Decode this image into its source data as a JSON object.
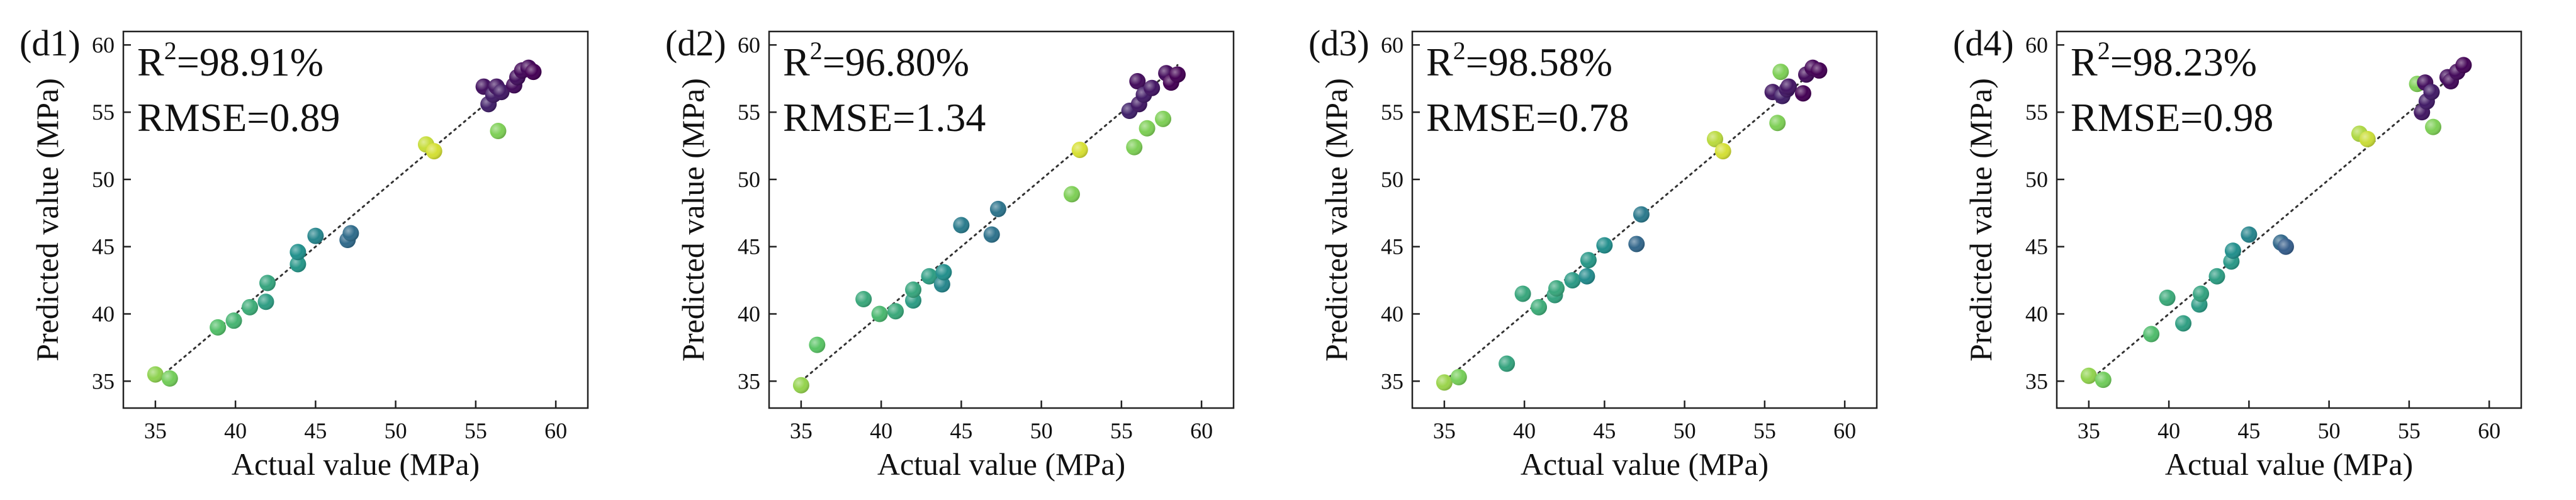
{
  "chart_data": [
    {
      "type": "scatter",
      "panel_label": "(d1)",
      "r2_label": "R",
      "r2_sup": "2",
      "r2_value": "=98.91%",
      "rmse_text": "RMSE=0.89",
      "xlabel": "Actual value (MPa)",
      "ylabel": "Predicted value (MPa)",
      "xlim": [
        33,
        62
      ],
      "ylim": [
        33,
        61
      ],
      "xticks": [
        35,
        40,
        45,
        50,
        55,
        60
      ],
      "yticks": [
        35,
        40,
        45,
        50,
        55,
        60
      ],
      "reference_line": {
        "style": "dotted",
        "from": [
          35,
          35
        ],
        "to": [
          58.5,
          58.5
        ]
      },
      "points": [
        {
          "x": 35.0,
          "y": 35.5
        },
        {
          "x": 35.9,
          "y": 35.2
        },
        {
          "x": 38.9,
          "y": 39.0
        },
        {
          "x": 39.9,
          "y": 39.5
        },
        {
          "x": 40.9,
          "y": 40.5
        },
        {
          "x": 41.9,
          "y": 40.9
        },
        {
          "x": 42.0,
          "y": 42.3
        },
        {
          "x": 43.9,
          "y": 43.7
        },
        {
          "x": 43.9,
          "y": 44.6
        },
        {
          "x": 45.0,
          "y": 45.8
        },
        {
          "x": 47.0,
          "y": 45.5
        },
        {
          "x": 47.2,
          "y": 46.0
        },
        {
          "x": 51.9,
          "y": 52.6
        },
        {
          "x": 52.4,
          "y": 52.1
        },
        {
          "x": 55.5,
          "y": 56.9
        },
        {
          "x": 55.8,
          "y": 55.6
        },
        {
          "x": 56.1,
          "y": 56.3
        },
        {
          "x": 56.3,
          "y": 56.9
        },
        {
          "x": 56.4,
          "y": 53.6
        },
        {
          "x": 56.6,
          "y": 56.5
        },
        {
          "x": 57.4,
          "y": 57.0
        },
        {
          "x": 57.6,
          "y": 57.6
        },
        {
          "x": 57.9,
          "y": 58.1
        },
        {
          "x": 58.3,
          "y": 58.3
        },
        {
          "x": 58.6,
          "y": 58.0
        }
      ]
    },
    {
      "type": "scatter",
      "panel_label": "(d2)",
      "r2_label": "R",
      "r2_sup": "2",
      "r2_value": "=96.80%",
      "rmse_text": "RMSE=1.34",
      "xlabel": "Actual value (MPa)",
      "ylabel": "Predicted value (MPa)",
      "xlim": [
        33,
        62
      ],
      "ylim": [
        33,
        61
      ],
      "xticks": [
        35,
        40,
        45,
        50,
        55,
        60
      ],
      "yticks": [
        35,
        40,
        45,
        50,
        55,
        60
      ],
      "reference_line": {
        "style": "dotted",
        "from": [
          35,
          35
        ],
        "to": [
          58.5,
          58.5
        ]
      },
      "points": [
        {
          "x": 35.0,
          "y": 34.7
        },
        {
          "x": 36.0,
          "y": 37.7
        },
        {
          "x": 38.9,
          "y": 41.1
        },
        {
          "x": 39.9,
          "y": 40.0
        },
        {
          "x": 40.9,
          "y": 40.2
        },
        {
          "x": 42.0,
          "y": 41.0
        },
        {
          "x": 42.0,
          "y": 41.8
        },
        {
          "x": 43.0,
          "y": 42.8
        },
        {
          "x": 43.8,
          "y": 42.2
        },
        {
          "x": 43.9,
          "y": 43.1
        },
        {
          "x": 45.0,
          "y": 46.6
        },
        {
          "x": 46.9,
          "y": 45.9
        },
        {
          "x": 47.3,
          "y": 47.8
        },
        {
          "x": 51.9,
          "y": 48.9
        },
        {
          "x": 52.4,
          "y": 52.2
        },
        {
          "x": 55.5,
          "y": 55.1
        },
        {
          "x": 55.8,
          "y": 52.4
        },
        {
          "x": 56.0,
          "y": 57.3
        },
        {
          "x": 56.1,
          "y": 55.6
        },
        {
          "x": 56.4,
          "y": 56.3
        },
        {
          "x": 56.6,
          "y": 53.8
        },
        {
          "x": 56.9,
          "y": 56.8
        },
        {
          "x": 57.6,
          "y": 54.5
        },
        {
          "x": 57.8,
          "y": 57.9
        },
        {
          "x": 58.1,
          "y": 57.2
        },
        {
          "x": 58.5,
          "y": 57.8
        }
      ]
    },
    {
      "type": "scatter",
      "panel_label": "(d3)",
      "r2_label": "R",
      "r2_sup": "2",
      "r2_value": "=98.58%",
      "rmse_text": "RMSE=0.78",
      "xlabel": "Actual value (MPa)",
      "ylabel": "Predicted value (MPa)",
      "xlim": [
        33,
        62
      ],
      "ylim": [
        33,
        61
      ],
      "xticks": [
        35,
        40,
        45,
        50,
        55,
        60
      ],
      "yticks": [
        35,
        40,
        45,
        50,
        55,
        60
      ],
      "reference_line": {
        "style": "dotted",
        "from": [
          35,
          35
        ],
        "to": [
          58.5,
          58.5
        ]
      },
      "points": [
        {
          "x": 35.0,
          "y": 34.9
        },
        {
          "x": 35.9,
          "y": 35.3
        },
        {
          "x": 38.9,
          "y": 36.3
        },
        {
          "x": 39.9,
          "y": 41.5
        },
        {
          "x": 40.9,
          "y": 40.5
        },
        {
          "x": 41.9,
          "y": 41.4
        },
        {
          "x": 42.0,
          "y": 41.9
        },
        {
          "x": 43.0,
          "y": 42.5
        },
        {
          "x": 43.9,
          "y": 42.8
        },
        {
          "x": 44.0,
          "y": 44.0
        },
        {
          "x": 45.0,
          "y": 45.1
        },
        {
          "x": 47.0,
          "y": 45.2
        },
        {
          "x": 47.3,
          "y": 47.4
        },
        {
          "x": 51.9,
          "y": 53.0
        },
        {
          "x": 52.4,
          "y": 52.1
        },
        {
          "x": 55.5,
          "y": 56.5
        },
        {
          "x": 55.8,
          "y": 54.2
        },
        {
          "x": 56.0,
          "y": 58.0
        },
        {
          "x": 56.1,
          "y": 56.2
        },
        {
          "x": 56.4,
          "y": 56.7
        },
        {
          "x": 56.5,
          "y": 56.9
        },
        {
          "x": 57.4,
          "y": 56.4
        },
        {
          "x": 57.6,
          "y": 57.8
        },
        {
          "x": 58.0,
          "y": 58.3
        },
        {
          "x": 58.4,
          "y": 58.1
        }
      ]
    },
    {
      "type": "scatter",
      "panel_label": "(d4)",
      "r2_label": "R",
      "r2_sup": "2",
      "r2_value": "=98.23%",
      "rmse_text": "RMSE=0.98",
      "xlabel": "Actual value (MPa)",
      "ylabel": "Predicted value (MPa)",
      "xlim": [
        33,
        62
      ],
      "ylim": [
        33,
        61
      ],
      "xticks": [
        35,
        40,
        45,
        50,
        55,
        60
      ],
      "yticks": [
        35,
        40,
        45,
        50,
        55,
        60
      ],
      "reference_line": {
        "style": "dotted",
        "from": [
          35,
          35
        ],
        "to": [
          58.5,
          58.5
        ]
      },
      "points": [
        {
          "x": 35.0,
          "y": 35.4
        },
        {
          "x": 35.9,
          "y": 35.1
        },
        {
          "x": 38.9,
          "y": 38.5
        },
        {
          "x": 39.9,
          "y": 41.2
        },
        {
          "x": 40.9,
          "y": 39.3
        },
        {
          "x": 41.9,
          "y": 40.7
        },
        {
          "x": 42.0,
          "y": 41.5
        },
        {
          "x": 43.0,
          "y": 42.8
        },
        {
          "x": 43.9,
          "y": 43.9
        },
        {
          "x": 44.0,
          "y": 44.7
        },
        {
          "x": 45.0,
          "y": 45.9
        },
        {
          "x": 47.0,
          "y": 45.3
        },
        {
          "x": 47.3,
          "y": 45.0
        },
        {
          "x": 51.9,
          "y": 53.4
        },
        {
          "x": 52.4,
          "y": 53.0
        },
        {
          "x": 55.5,
          "y": 57.1
        },
        {
          "x": 55.8,
          "y": 55.0
        },
        {
          "x": 56.0,
          "y": 57.2
        },
        {
          "x": 56.1,
          "y": 55.8
        },
        {
          "x": 56.4,
          "y": 56.5
        },
        {
          "x": 56.5,
          "y": 53.9
        },
        {
          "x": 57.4,
          "y": 57.6
        },
        {
          "x": 57.6,
          "y": 57.3
        },
        {
          "x": 58.0,
          "y": 58.0
        },
        {
          "x": 58.4,
          "y": 58.5
        }
      ]
    }
  ]
}
